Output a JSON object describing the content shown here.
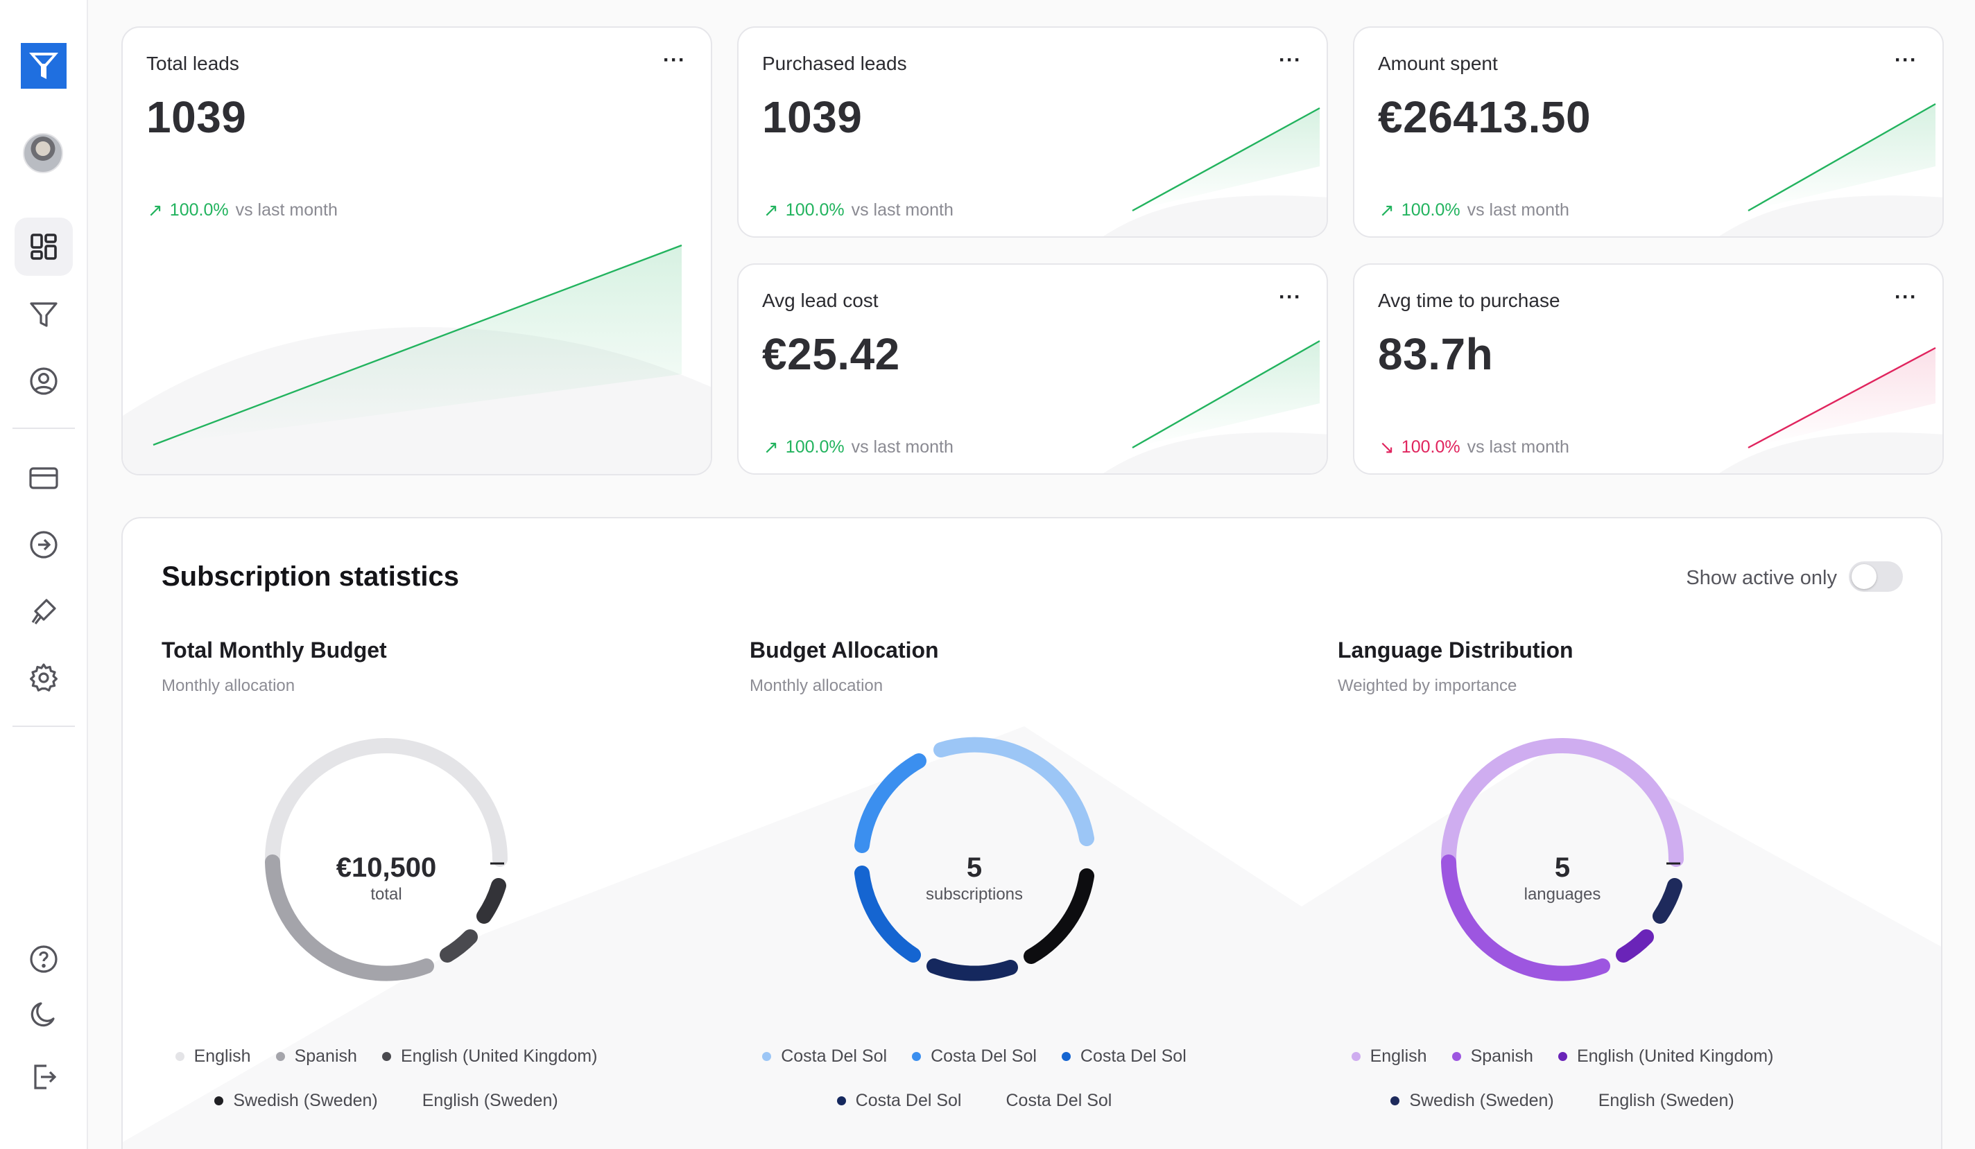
{
  "sidebar": {
    "items": [
      {
        "name": "dashboard-icon",
        "active": true
      },
      {
        "name": "funnel-icon"
      },
      {
        "name": "user-circle-icon"
      },
      {
        "name": "credit-card-icon"
      },
      {
        "name": "arrow-right-circle-icon"
      },
      {
        "name": "brush-icon"
      },
      {
        "name": "gear-icon"
      },
      {
        "name": "help-icon"
      },
      {
        "name": "moon-icon"
      },
      {
        "name": "logout-icon"
      }
    ],
    "logo_color": "#1f6fe0"
  },
  "stats": [
    {
      "title": "Total leads",
      "value": "1039",
      "pct": "100.0%",
      "suffix": "vs last month",
      "trend": "up"
    },
    {
      "title": "Purchased leads",
      "value": "1039",
      "pct": "100.0%",
      "suffix": "vs last month",
      "trend": "up"
    },
    {
      "title": "Amount spent",
      "value": "€26413.50",
      "pct": "100.0%",
      "suffix": "vs last month",
      "trend": "up"
    },
    {
      "title": "Avg lead cost",
      "value": "€25.42",
      "pct": "100.0%",
      "suffix": "vs last month",
      "trend": "up"
    },
    {
      "title": "Avg time to purchase",
      "value": "83.7h",
      "pct": "100.0%",
      "suffix": "vs last month",
      "trend": "down"
    }
  ],
  "menu_glyph": "···",
  "colors": {
    "up": "#22b35e",
    "down": "#e0245e"
  },
  "subscription": {
    "title": "Subscription statistics",
    "toggle_label": "Show active only",
    "toggle_on": false,
    "charts": [
      {
        "title": "Total Monthly Budget",
        "subtitle": "Monthly allocation",
        "center_value": "€10,500",
        "center_label": "total",
        "legend_row1": [
          "English",
          "Spanish",
          "English (United Kingdom)"
        ],
        "legend_row2": [
          "Swedish (Sweden)",
          "English (Sweden)"
        ]
      },
      {
        "title": "Budget Allocation",
        "subtitle": "Monthly allocation",
        "center_value": "5",
        "center_label": "subscriptions",
        "legend_row1": [
          "Costa Del Sol",
          "Costa Del Sol",
          "Costa Del Sol"
        ],
        "legend_row2": [
          "Costa Del Sol",
          "Costa Del Sol"
        ]
      },
      {
        "title": "Language Distribution",
        "subtitle": "Weighted by importance",
        "center_value": "5",
        "center_label": "languages",
        "legend_row1": [
          "English",
          "Spanish",
          "English (United Kingdom)"
        ],
        "legend_row2": [
          "Swedish (Sweden)",
          "English (Sweden)"
        ]
      }
    ]
  }
}
